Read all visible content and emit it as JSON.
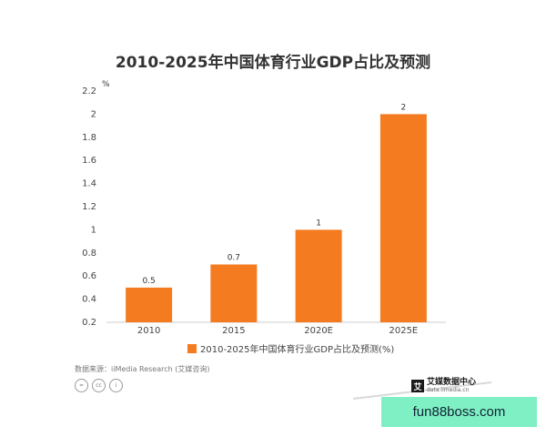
{
  "chart_data": {
    "type": "bar",
    "title": "2010-2025年中国体育行业GDP占比及预测",
    "unit_label": "%",
    "categories": [
      "2010",
      "2015",
      "2020E",
      "2025E"
    ],
    "values": [
      0.5,
      0.7,
      1,
      2
    ],
    "value_labels": [
      "0.5",
      "0.7",
      "1",
      "2"
    ],
    "yticks": [
      "0.2",
      "0.4",
      "0.6",
      "0.8",
      "1",
      "1.2",
      "1.4",
      "1.6",
      "1.8",
      "2",
      "2.2"
    ],
    "ylim": [
      0.2,
      2.2
    ],
    "bar_color": "#f47b20",
    "legend": "2010-2025年中国体育行业GDP占比及预测(%)",
    "legend_position": "bottom",
    "grid": false
  },
  "footer": {
    "source": "数据来源：iiMedia Research (艾媒咨询)",
    "cc_icons": [
      "=",
      "cc",
      "i"
    ],
    "brand_mark": "艾",
    "brand_name": "艾媒数据中心",
    "brand_url": "data.iimedia.cn"
  },
  "watermark": "fun88boss.com"
}
